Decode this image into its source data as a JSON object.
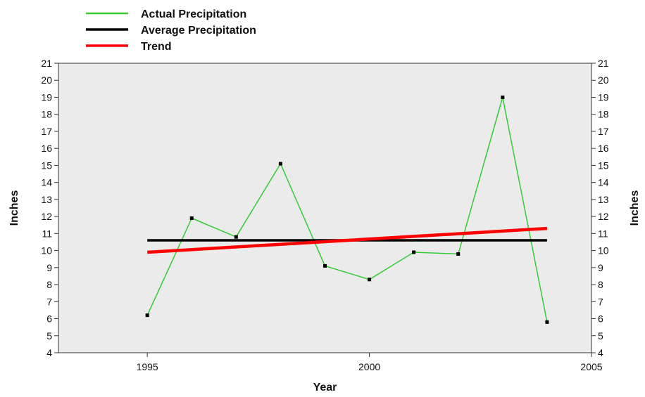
{
  "chart_data": {
    "type": "line",
    "xlabel": "Year",
    "ylabel": "Inches",
    "ylabel_right": "Inches",
    "xlim": [
      1993,
      2005
    ],
    "ylim": [
      4,
      21
    ],
    "x_ticks": [
      1995,
      2000,
      2005
    ],
    "y_ticks": [
      4,
      5,
      6,
      7,
      8,
      9,
      10,
      11,
      12,
      13,
      14,
      15,
      16,
      17,
      18,
      19,
      20,
      21
    ],
    "grid": false,
    "plot_background": "#ebebeb",
    "legend_position": "top-left, outside plot",
    "series": [
      {
        "name": "Actual Precipitation",
        "color": "#33cc33",
        "markers": true,
        "x": [
          1995,
          1996,
          1997,
          1998,
          1999,
          2000,
          2001,
          2002,
          2003,
          2004
        ],
        "y": [
          6.2,
          11.9,
          10.8,
          15.1,
          9.1,
          8.3,
          9.9,
          9.8,
          19.0,
          5.8
        ]
      },
      {
        "name": "Average Precipitation",
        "color": "#000000",
        "x": [
          1995,
          2004
        ],
        "y": [
          10.6,
          10.6
        ]
      },
      {
        "name": "Trend",
        "color": "#ff0000",
        "x": [
          1995,
          2004
        ],
        "y": [
          9.9,
          11.3
        ]
      }
    ]
  }
}
